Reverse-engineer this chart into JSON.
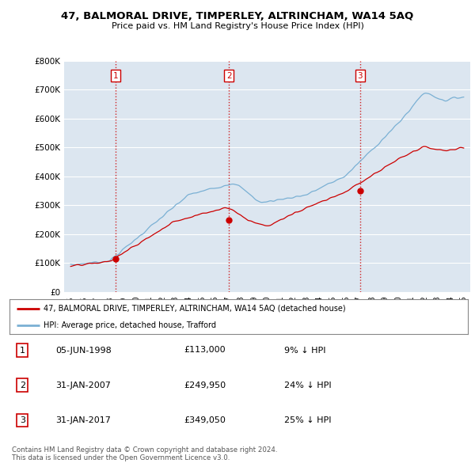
{
  "title": "47, BALMORAL DRIVE, TIMPERLEY, ALTRINCHAM, WA14 5AQ",
  "subtitle": "Price paid vs. HM Land Registry's House Price Index (HPI)",
  "background_color": "#ffffff",
  "plot_background": "#dce6f0",
  "grid_color": "#ffffff",
  "red_line_color": "#cc0000",
  "blue_line_color": "#7ab0d4",
  "sale_dot_color": "#cc0000",
  "vline_color": "#cc0000",
  "purchase_dates": [
    "05-JUN-1998",
    "31-JAN-2007",
    "31-JAN-2017"
  ],
  "purchase_prices": [
    "£113,000",
    "£249,950",
    "£349,050"
  ],
  "purchase_pcts": [
    "9% ↓ HPI",
    "24% ↓ HPI",
    "25% ↓ HPI"
  ],
  "purchase_date_nums": [
    1998.43,
    2007.08,
    2017.08
  ],
  "purchase_price_vals": [
    113000,
    249950,
    349050
  ],
  "legend_label_red": "47, BALMORAL DRIVE, TIMPERLEY, ALTRINCHAM, WA14 5AQ (detached house)",
  "legend_label_blue": "HPI: Average price, detached house, Trafford",
  "footer1": "Contains HM Land Registry data © Crown copyright and database right 2024.",
  "footer2": "This data is licensed under the Open Government Licence v3.0.",
  "ylim": [
    0,
    800000
  ],
  "xlim_start": 1994.5,
  "xlim_end": 2025.5,
  "yticks": [
    0,
    100000,
    200000,
    300000,
    400000,
    500000,
    600000,
    700000,
    800000
  ],
  "ytick_labels": [
    "£0",
    "£100K",
    "£200K",
    "£300K",
    "£400K",
    "£500K",
    "£600K",
    "£700K",
    "£800K"
  ],
  "xtick_years": [
    1995,
    1996,
    1997,
    1998,
    1999,
    2000,
    2001,
    2002,
    2003,
    2004,
    2005,
    2006,
    2007,
    2008,
    2009,
    2010,
    2011,
    2012,
    2013,
    2014,
    2015,
    2016,
    2017,
    2018,
    2019,
    2020,
    2021,
    2022,
    2023,
    2024,
    2025
  ]
}
